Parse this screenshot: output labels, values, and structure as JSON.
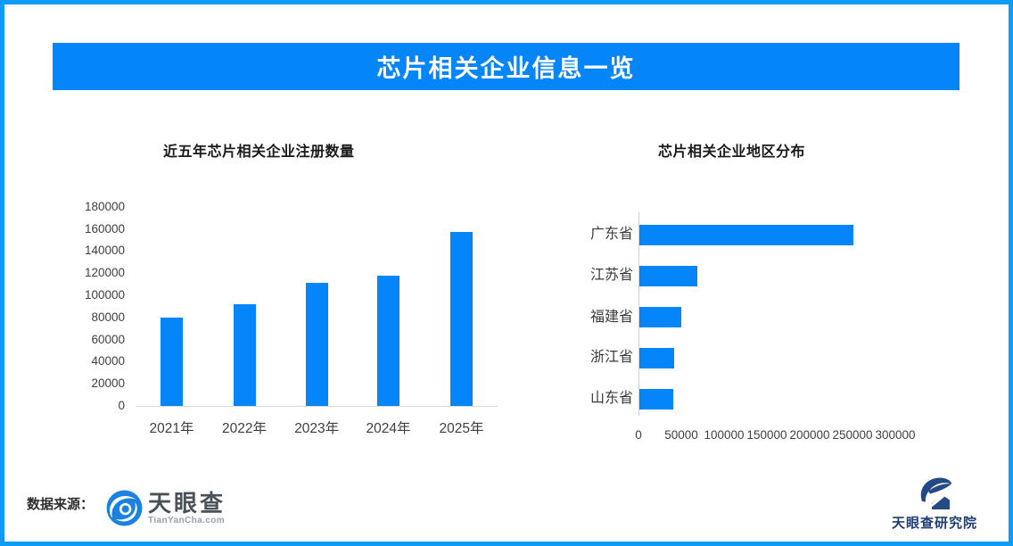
{
  "page": {
    "title": "芯片相关企业信息一览",
    "source_label": "数据来源：",
    "colors": {
      "accent": "#0585fa",
      "frame": "#0d9bf5",
      "bar": "#0585fa"
    }
  },
  "logo": {
    "name": "天眼查",
    "domain": "TianYanCha.com"
  },
  "research_logo": {
    "name": "天眼查研究院"
  },
  "chart_data": [
    {
      "type": "bar",
      "title": "近五年芯片相关企业注册数量",
      "categories": [
        "2021年",
        "2022年",
        "2023年",
        "2024年",
        "2025年"
      ],
      "values": [
        79600,
        91700,
        111400,
        117600,
        157500
      ],
      "xlabel": "",
      "ylabel": "",
      "ylim": [
        0,
        180000
      ],
      "yticks": [
        180000,
        160000,
        140000,
        120000,
        100000,
        80000,
        60000,
        40000,
        20000,
        0
      ],
      "grid": false,
      "legend": "none",
      "bar_color": "#0585fa"
    },
    {
      "type": "bar",
      "orientation": "horizontal",
      "title": "芯片相关企业地区分布",
      "categories": [
        "广东省",
        "江苏省",
        "福建省",
        "浙江省",
        "山东省"
      ],
      "values": [
        250000,
        68000,
        49000,
        41000,
        39500
      ],
      "xlabel": "",
      "ylabel": "",
      "xlim": [
        0,
        300000
      ],
      "xticks": [
        0,
        50000,
        100000,
        150000,
        200000,
        250000,
        300000
      ],
      "grid": false,
      "legend": "none",
      "bar_color": "#0585fa"
    }
  ]
}
